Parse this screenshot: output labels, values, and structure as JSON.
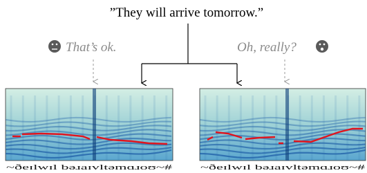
{
  "sentence": "”They will arrive tomorrow.”",
  "left": {
    "caption": "That’s ok.",
    "phonemes": "~ðeɪlwɪl bəɹaɪvltəmɑɹoʊ~#"
  },
  "right": {
    "caption": "Oh, really?",
    "phonemes": "~ðeɪlwɪl bəɹaɪvltəmɑɹoʊ~#"
  }
}
